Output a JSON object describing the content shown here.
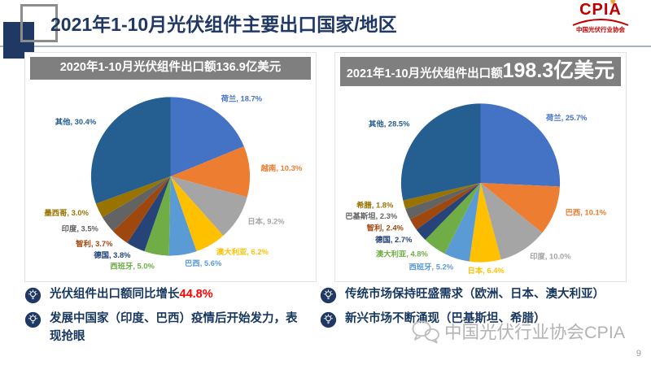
{
  "slide": {
    "title": "2021年1-10月光伏组件主要出口国家/地区",
    "page_number": "9",
    "watermark": "中国光伏行业协会CPIA",
    "logo": {
      "text": "CPIA",
      "subtext": "中国光伏行业协会",
      "sun_glyph": "✹"
    },
    "colors": {
      "accent_navy": "#1F3864",
      "header_gray": "#7F7F7F",
      "highlight_red": "#FF0000",
      "logo_red": "#C00000"
    }
  },
  "chart_data": [
    {
      "type": "pie",
      "title_prefix": "2020年1-10月光伏组件出口额",
      "title_value": "136.9亿美元",
      "slices": [
        {
          "label": "荷兰",
          "value": 18.7,
          "color": "#4472C4"
        },
        {
          "label": "越南",
          "value": 10.3,
          "color": "#ED7D31"
        },
        {
          "label": "日本",
          "value": 9.2,
          "color": "#A5A5A5"
        },
        {
          "label": "澳大利亚",
          "value": 6.2,
          "color": "#FFC000"
        },
        {
          "label": "巴西",
          "value": 5.6,
          "color": "#5B9BD5"
        },
        {
          "label": "西班牙",
          "value": 5.0,
          "color": "#70AD47"
        },
        {
          "label": "德国",
          "value": 3.8,
          "color": "#264478"
        },
        {
          "label": "智利",
          "value": 3.7,
          "color": "#9E480E"
        },
        {
          "label": "印度",
          "value": 3.5,
          "color": "#636363"
        },
        {
          "label": "墨西哥",
          "value": 3.0,
          "color": "#997300"
        },
        {
          "label": "其他",
          "value": 30.4,
          "color": "#255E91"
        }
      ]
    },
    {
      "type": "pie",
      "title_prefix": "2021年1-10月光伏组件出口额",
      "title_value": "198.3亿美元",
      "slices": [
        {
          "label": "荷兰",
          "value": 25.7,
          "color": "#4472C4"
        },
        {
          "label": "巴西",
          "value": 10.1,
          "color": "#ED7D31"
        },
        {
          "label": "印度",
          "value": 10.0,
          "color": "#A5A5A5"
        },
        {
          "label": "日本",
          "value": 6.4,
          "color": "#FFC000"
        },
        {
          "label": "西班牙",
          "value": 5.2,
          "color": "#5B9BD5"
        },
        {
          "label": "澳大利亚",
          "value": 4.8,
          "color": "#70AD47"
        },
        {
          "label": "德国",
          "value": 2.7,
          "color": "#264478"
        },
        {
          "label": "智利",
          "value": 2.4,
          "color": "#9E480E"
        },
        {
          "label": "巴基斯坦",
          "value": 2.3,
          "color": "#636363"
        },
        {
          "label": "希腊",
          "value": 1.8,
          "color": "#997300"
        },
        {
          "label": "其他",
          "value": 28.5,
          "color": "#255E91"
        }
      ]
    }
  ],
  "bullets": {
    "left": [
      {
        "text": "光伏组件出口额同比增长",
        "highlight": "44.8%"
      },
      {
        "text": "发展中国家（印度、巴西）疫情后开始发力，表现抢眼",
        "highlight": ""
      }
    ],
    "right": [
      {
        "text": "传统市场保持旺盛需求（欧洲、日本、澳大利亚）",
        "highlight": ""
      },
      {
        "text": "新兴市场不断涌现（巴基斯坦、希腊）",
        "highlight": ""
      }
    ]
  }
}
